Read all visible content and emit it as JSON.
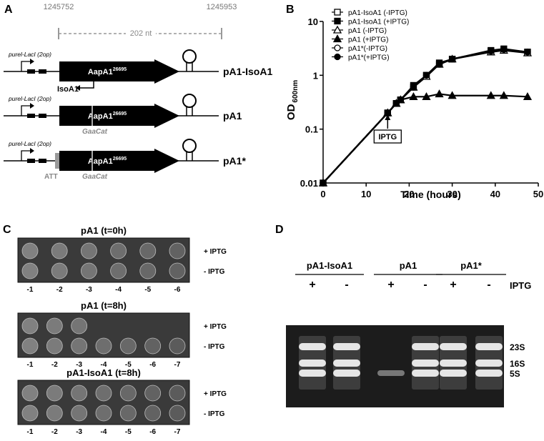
{
  "panel_a": {
    "letter": "A",
    "coord_left": "1245752",
    "coord_right": "1245953",
    "span": "202 nt",
    "constructs": [
      {
        "promoter": "purel-LacI (2op)",
        "gene": "AapA1",
        "strain": "26695",
        "name": "pA1-IsoA1",
        "antisense": "IsoA1"
      },
      {
        "promoter": "purel-LacI (2op)",
        "gene": "AapA1",
        "strain": "26695",
        "name": "pA1",
        "mutation": "GaaCat"
      },
      {
        "promoter": "purel-LacI (2op)",
        "gene": "AapA1",
        "strain": "26695",
        "name": "pA1*",
        "mutation": "GaaCat",
        "start": "ATT"
      }
    ]
  },
  "chart_data": {
    "type": "line",
    "panel_letter": "B",
    "x_label": "Time (hours)",
    "y_label": "OD",
    "y_label_sub": "600nm",
    "x": [
      0,
      15,
      17,
      18,
      21,
      24,
      27,
      30,
      39,
      42,
      47.5
    ],
    "series": [
      {
        "name": "pA1-IsoA1 (-IPTG)",
        "color": "#000000",
        "marker": "square-open",
        "values": [
          0.01,
          0.2,
          0.3,
          0.35,
          0.6,
          1.0,
          1.6,
          2.0,
          2.8,
          3.0,
          2.7
        ]
      },
      {
        "name": "pA1-IsoA1 (+IPTG)",
        "color": "#000000",
        "marker": "square-filled",
        "values": [
          0.01,
          0.2,
          0.3,
          0.35,
          0.65,
          1.0,
          1.7,
          2.0,
          2.9,
          3.1,
          2.7
        ]
      },
      {
        "name": "pA1 (-IPTG)",
        "color": "#000000",
        "marker": "triangle-open",
        "values": [
          0.01,
          0.2,
          0.3,
          0.35,
          0.6,
          0.95,
          1.6,
          2.0,
          2.7,
          2.9,
          2.6
        ]
      },
      {
        "name": "pA1 (+IPTG)",
        "color": "#000000",
        "marker": "triangle-filled",
        "values": [
          0.01,
          0.2,
          0.3,
          0.35,
          0.4,
          0.4,
          0.45,
          0.42,
          0.42,
          0.42,
          0.4
        ]
      },
      {
        "name": "pA1*(-IPTG)",
        "color": "#000000",
        "marker": "circle-open",
        "values": [
          0.01,
          0.2,
          0.3,
          0.35,
          0.6,
          1.0,
          1.6,
          2.0,
          2.8,
          3.0,
          2.7
        ]
      },
      {
        "name": "pA1*(+IPTG)",
        "color": "#000000",
        "marker": "circle-filled",
        "values": [
          0.01,
          0.2,
          0.3,
          0.35,
          0.62,
          1.0,
          1.65,
          2.0,
          2.8,
          3.0,
          2.7
        ]
      }
    ],
    "xlim": [
      0,
      50
    ],
    "xticks": [
      0,
      10,
      20,
      30,
      40,
      50
    ],
    "ylim": [
      0.01,
      10
    ],
    "yticks": [
      0.01,
      0.1,
      1,
      10
    ],
    "log_y": true,
    "grid": false,
    "legend": "top-left",
    "annotation": {
      "text": "IPTG",
      "x": 15
    }
  },
  "panel_c": {
    "letter": "C",
    "plates": [
      {
        "title": "pA1 (t=0h)",
        "rows": [
          "+ IPTG",
          "- IPTG"
        ],
        "dilutions": [
          "-1",
          "-2",
          "-3",
          "-4",
          "-5",
          "-6"
        ]
      },
      {
        "title": "pA1 (t=8h)",
        "rows": [
          "+ IPTG",
          "- IPTG"
        ],
        "dilutions": [
          "-1",
          "-2",
          "-3",
          "-4",
          "-5",
          "-6",
          "-7"
        ]
      },
      {
        "title": "pA1-IsoA1 (t=8h)",
        "rows": [
          "+ IPTG",
          "- IPTG"
        ],
        "dilutions": [
          "-1",
          "-2",
          "-3",
          "-4",
          "-5",
          "-6",
          "-7"
        ]
      }
    ]
  },
  "panel_d": {
    "letter": "D",
    "groups": [
      {
        "name": "pA1-IsoA1",
        "lanes": [
          "+",
          "-"
        ]
      },
      {
        "name": "pA1",
        "lanes": [
          "+",
          "-"
        ]
      },
      {
        "name": "pA1*",
        "lanes": [
          "+",
          "-"
        ]
      }
    ],
    "iptg": "IPTG",
    "bands": [
      "23S",
      "16S",
      "5S"
    ]
  }
}
